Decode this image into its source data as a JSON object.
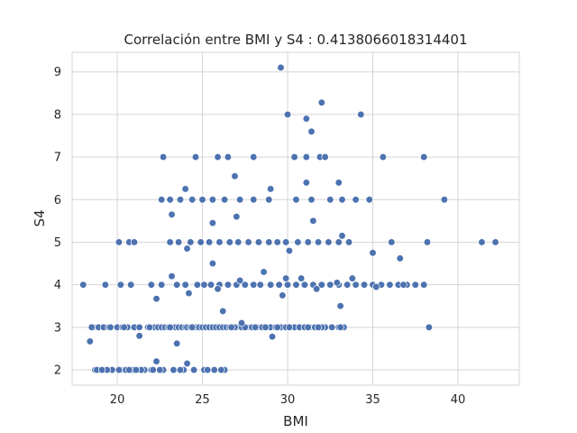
{
  "chart_data": {
    "type": "scatter",
    "title": "Correlación entre BMI y S4 : 0.4138066018314401",
    "xlabel": "BMI",
    "ylabel": "S4",
    "xlim": [
      17.35,
      43.6
    ],
    "ylim": [
      1.64,
      9.46
    ],
    "xticks": [
      "20",
      "25",
      "30",
      "35",
      "40"
    ],
    "yticks": [
      "2",
      "3",
      "4",
      "5",
      "6",
      "7",
      "8",
      "9"
    ],
    "grid": true,
    "point_color": "#4c72b0",
    "series": [
      {
        "x": [
          18.0,
          18.4,
          18.6,
          18.7,
          18.9,
          19.0,
          19.2,
          19.3,
          19.5,
          19.7,
          20.0,
          20.2,
          20.3,
          20.5,
          20.6,
          20.9,
          21.0,
          21.2,
          21.3,
          21.6,
          21.8,
          22.0,
          22.2,
          22.4,
          22.6,
          22.8,
          23.0,
          23.2,
          23.4,
          23.6,
          23.8,
          24.0,
          24.1,
          24.3,
          24.6,
          24.8,
          25.0,
          25.2,
          25.4,
          25.6,
          25.8,
          26.0,
          26.2,
          26.4,
          26.6,
          26.8,
          27.0,
          27.3,
          27.6,
          27.9,
          28.2,
          28.5,
          28.8,
          29.0,
          29.3,
          29.6,
          29.9,
          30.2,
          30.4,
          30.7,
          31.0,
          31.3,
          31.6,
          31.9,
          32.2,
          32.6,
          33.0,
          33.3,
          18.8,
          19.4,
          20.1,
          20.7,
          21.4,
          22.1,
          22.7,
          23.3,
          23.9,
          24.5,
          25.1,
          25.7,
          26.3,
          26.9,
          27.5,
          28.1,
          28.7,
          29.4,
          30.1,
          31.2,
          32.0,
          33.1,
          19.1,
          19.6,
          20.4,
          21.1,
          21.9,
          22.5,
          23.1,
          23.7,
          24.4,
          25.3,
          26.1,
          26.7,
          19.3,
          20.2,
          20.8,
          22.0,
          22.6,
          23.5,
          24.0,
          24.7,
          25.1,
          25.5,
          26.0,
          26.5,
          27.0,
          27.5,
          28.0,
          28.4,
          29.0,
          29.5,
          30.0,
          30.5,
          31.0,
          31.5,
          32.0,
          32.5,
          33.0,
          33.5,
          34.0,
          34.5,
          35.0,
          35.5,
          36.0,
          36.5,
          37.0,
          37.5,
          38.0,
          22.3,
          23.2,
          24.2,
          25.9,
          27.2,
          28.6,
          29.7,
          30.8,
          31.7,
          32.9,
          33.8,
          35.2,
          36.8,
          20.1,
          20.7,
          21.0,
          23.1,
          23.6,
          24.3,
          24.9,
          25.4,
          26.0,
          26.6,
          27.1,
          27.7,
          28.3,
          28.9,
          29.4,
          29.9,
          30.6,
          31.2,
          31.8,
          32.4,
          33.0,
          33.6,
          35.0,
          36.1,
          38.2,
          41.4,
          42.2,
          24.1,
          25.6,
          27.0,
          30.1,
          31.5,
          33.2,
          36.6,
          22.6,
          23.1,
          23.7,
          24.4,
          25.0,
          25.6,
          26.3,
          27.2,
          28.0,
          28.9,
          30.5,
          31.4,
          32.5,
          33.2,
          34.0,
          34.8,
          39.2,
          24.0,
          26.9,
          29.0,
          31.1,
          33.0,
          22.7,
          24.6,
          25.9,
          26.5,
          28.0,
          30.4,
          31.1,
          31.9,
          32.2,
          35.6,
          38.0,
          30.0,
          34.3,
          32.0,
          31.4,
          31.1,
          29.6,
          18.5,
          21.3,
          22.3,
          23.5,
          24.1,
          26.2,
          27.3,
          29.1,
          31.8,
          23.2,
          25.6,
          29.9,
          33.1,
          38.3
        ],
        "y": [
          4,
          2.67,
          3,
          2,
          3,
          2,
          3,
          2,
          3,
          2,
          3,
          2,
          3,
          2,
          3,
          2,
          3,
          2,
          3,
          2,
          3,
          2,
          3,
          3,
          3,
          3,
          3,
          3,
          3,
          3,
          3,
          3,
          3,
          3,
          3,
          3,
          3,
          3,
          3,
          3,
          3,
          3,
          3,
          3,
          3,
          3,
          3,
          3,
          3,
          3,
          3,
          3,
          3,
          3,
          3,
          3,
          3,
          3,
          3,
          3,
          3,
          3,
          3,
          3,
          3,
          3,
          3,
          3,
          2,
          2,
          2,
          2,
          2,
          2,
          2,
          2,
          2,
          2,
          2,
          2,
          2,
          3,
          3,
          3,
          3,
          3,
          3,
          3,
          3,
          3,
          2,
          3,
          3,
          2,
          3,
          2,
          3,
          2,
          3,
          2,
          2,
          3,
          4,
          4,
          4,
          4,
          4,
          4,
          4,
          4,
          4,
          4,
          4,
          4,
          4,
          4,
          4,
          4,
          4,
          4,
          4,
          4,
          4,
          4,
          4,
          4,
          4,
          4,
          4,
          4,
          4,
          4,
          4,
          4,
          4,
          4,
          4,
          3.67,
          4.2,
          3.8,
          3.9,
          4.1,
          4.3,
          3.75,
          4.15,
          3.9,
          4.05,
          4.15,
          3.95,
          4.0,
          5,
          5,
          5,
          5,
          5,
          5,
          5,
          5,
          5,
          5,
          5,
          5,
          5,
          5,
          5,
          5,
          5,
          5,
          5,
          5,
          5,
          5,
          4.75,
          5,
          5,
          5,
          5,
          4.85,
          5.45,
          5.6,
          4.8,
          5.5,
          5.15,
          4.62,
          6,
          6,
          6,
          6,
          6,
          6,
          6,
          6,
          6,
          6,
          6,
          6,
          6,
          6,
          6,
          6,
          6,
          6.25,
          6.55,
          6.25,
          6.4,
          6.4,
          7,
          7,
          7,
          7,
          7,
          7,
          7,
          7,
          7,
          7,
          7,
          8,
          8,
          8.28,
          7.6,
          7.9,
          9.1,
          3.0,
          2.8,
          2.2,
          2.62,
          2.15,
          3.38,
          3.1,
          2.78,
          3.0,
          5.65,
          4.5,
          4.15,
          3.5,
          3.0
        ]
      }
    ]
  }
}
